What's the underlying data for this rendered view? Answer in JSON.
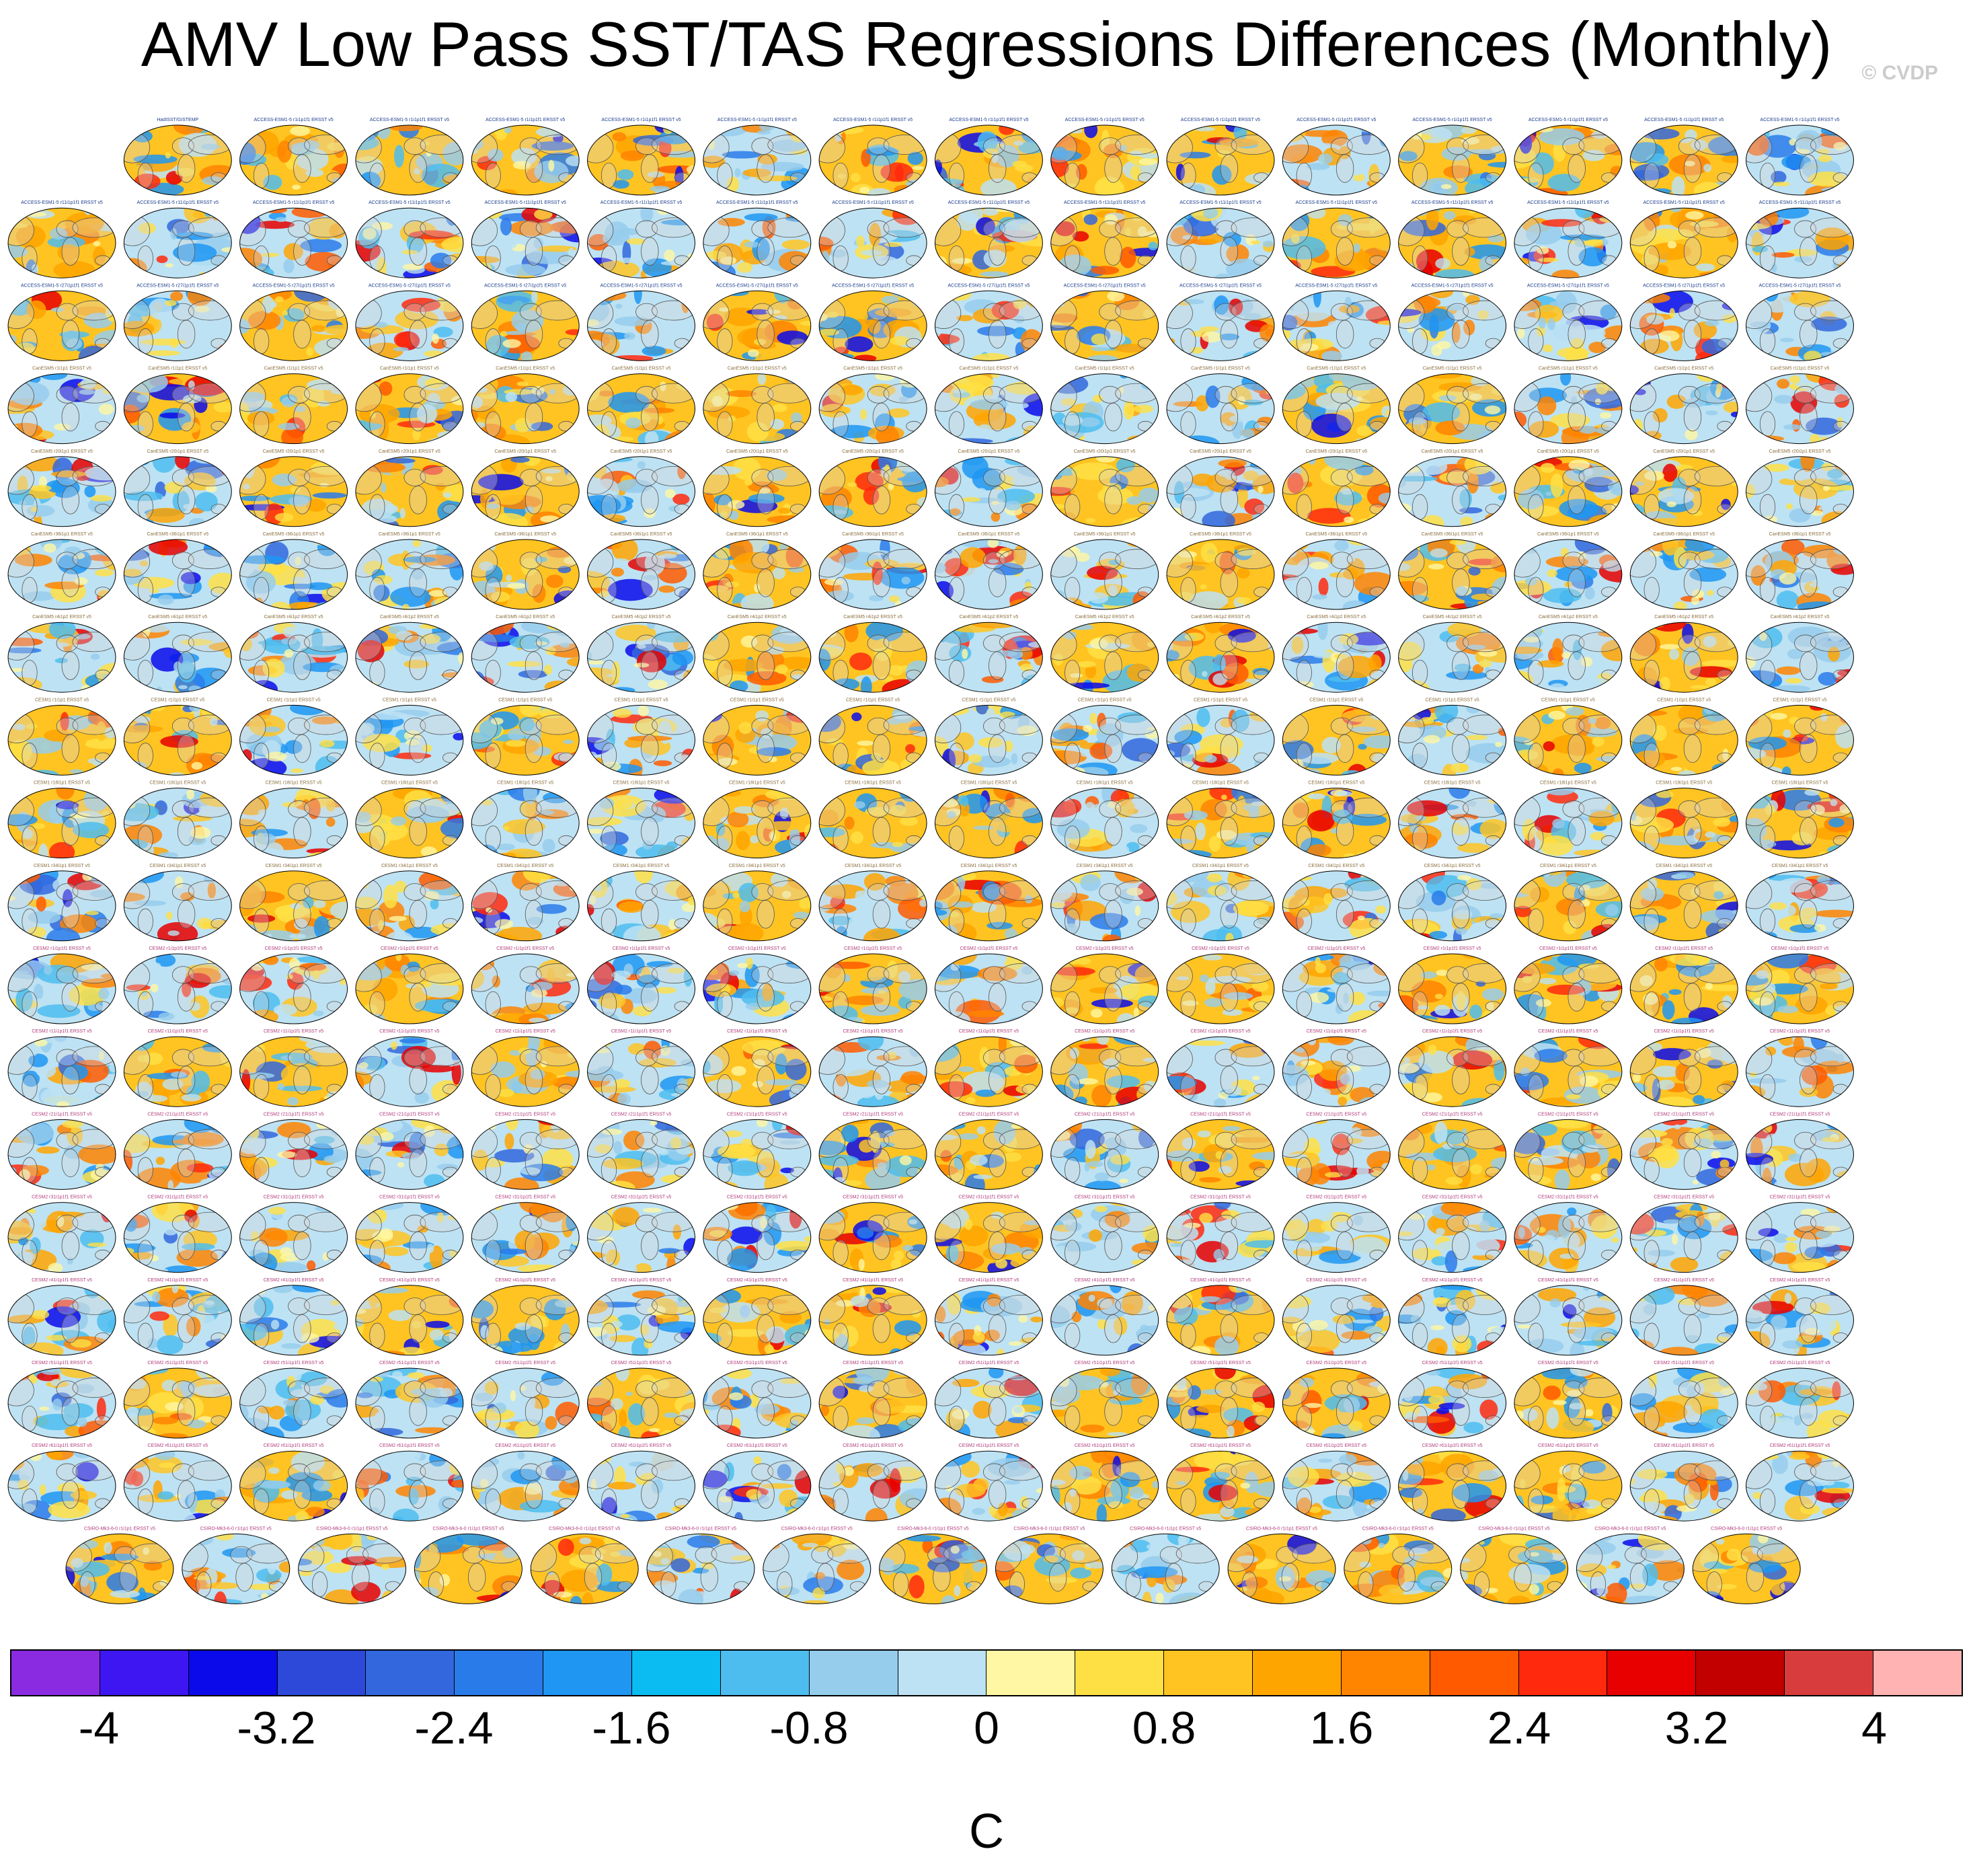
{
  "title": "AMV Low Pass SST/TAS Regressions Differences (Monthly)",
  "watermark": "© CVDP",
  "chart_data": {
    "type": "heatmap",
    "title": "AMV Low Pass SST/TAS Regressions Differences (Monthly)",
    "description_panels": "Grid of global map panels showing regression differences between model ensemble members and observations",
    "units": "C",
    "colorbar": {
      "min": -4.4,
      "max": 4.4,
      "step": 0.4,
      "tick_labels": [
        "-4",
        "-3.2",
        "-2.4",
        "-1.6",
        "-0.8",
        "0",
        "0.8",
        "1.6",
        "2.4",
        "3.2",
        "4"
      ],
      "tick_values": [
        -4,
        -3.2,
        -2.4,
        -1.6,
        -0.8,
        0,
        0.8,
        1.6,
        2.4,
        3.2,
        4
      ],
      "colors": [
        "#8a2be2",
        "#3d16f2",
        "#0a0aea",
        "#2c49d9",
        "#3367dd",
        "#2a7bea",
        "#1e96f2",
        "#0bbcf2",
        "#4dbdef",
        "#96cdec",
        "#bde2f3",
        "#fff7a3",
        "#ffe044",
        "#ffc421",
        "#ffa500",
        "#ff8400",
        "#ff5a00",
        "#ff2a0e",
        "#e80000",
        "#c20000",
        "#d93c3c",
        "#ffb3b3"
      ]
    },
    "panel_grid": {
      "rows": 18,
      "row_counts": [
        15,
        16,
        16,
        16,
        16,
        16,
        16,
        16,
        16,
        16,
        16,
        16,
        16,
        16,
        16,
        16,
        16,
        15
      ],
      "first_panel_labels": [
        "HadISST/GISTEMP",
        "ERSST v5/BEST"
      ],
      "row_label_groups": [
        "ACCESS-ESM1-5 r1i1p1f1 ERSST v5",
        "ACCESS-ESM1-5 r11i1p1f1 ERSST v5",
        "ACCESS-ESM1-5 r27i1p1f1 ERSST v5",
        "CanESM5 r1i1p1 ERSST v5",
        "CanESM5 r20i1p1 ERSST v5",
        "CanESM5 r36i1p1 ERSST v5",
        "CanESM5 r4i1p2 ERSST v5",
        "CESM1 r1i1p1 ERSST v5",
        "CESM1 r18i1p1 ERSST v5",
        "CESM1 r34i1p1 ERSST v5",
        "CESM2 r1i1p1f1 ERSST v5",
        "CESM2 r11i1p1f1 ERSST v5",
        "CESM2 r21i1p1f1 ERSST v5",
        "CESM2 r31i1p1f1 ERSST v5",
        "CESM2 r41i1p1f1 ERSST v5",
        "CESM2 r51i1p1f1 ERSST v5",
        "CESM2 r61i1p1f1 ERSST v5",
        "CSIRO-Mk3-6-0 r1i1p1 ERSST v5"
      ]
    }
  }
}
